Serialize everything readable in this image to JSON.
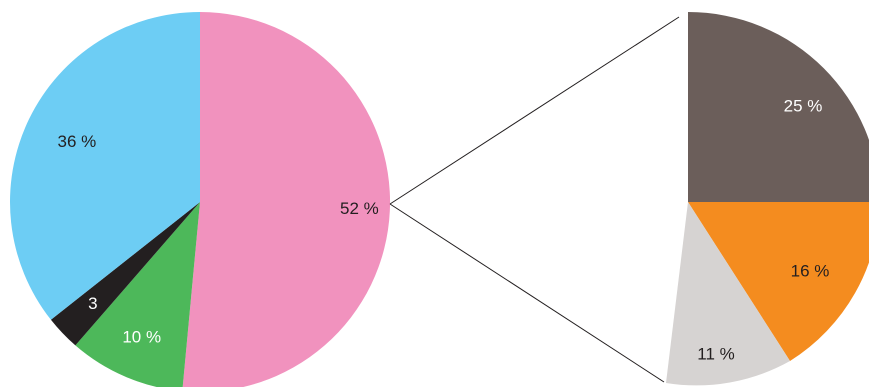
{
  "chart_data": [
    {
      "type": "pie",
      "slices": [
        {
          "label": "52 %",
          "value": 52,
          "color": "#f192be",
          "label_color": "#231f20"
        },
        {
          "label": "10 %",
          "value": 10,
          "color": "#4db85a",
          "label_color": "#ffffff"
        },
        {
          "label": "3",
          "value": 3,
          "color": "#231f20",
          "label_color": "#ffffff"
        },
        {
          "label": "36 %",
          "value": 36,
          "color": "#6dcdf4",
          "label_color": "#231f20"
        }
      ],
      "exploded_slice": "52 %"
    },
    {
      "type": "pie",
      "slices": [
        {
          "label": "25 %",
          "value": 25,
          "color": "#6b5e5a",
          "label_color": "#ffffff"
        },
        {
          "label": "16 %",
          "value": 16,
          "color": "#f48c1f",
          "label_color": "#231f20"
        },
        {
          "label": "11 %",
          "value": 11,
          "color": "#d6d3d2",
          "label_color": "#231f20"
        }
      ]
    }
  ]
}
